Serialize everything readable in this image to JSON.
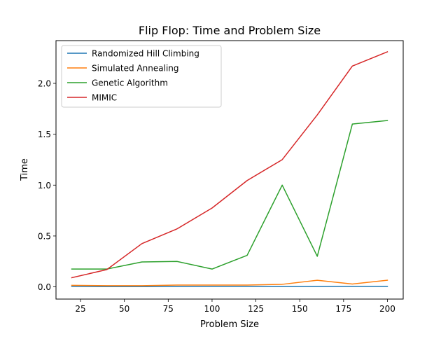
{
  "chart_data": {
    "type": "line",
    "title": "Flip Flop: Time and Problem Size",
    "xlabel": "Problem Size",
    "ylabel": "Time",
    "xlim": [
      11,
      209
    ],
    "ylim": [
      -0.12,
      2.42
    ],
    "xticks": [
      25,
      50,
      75,
      100,
      125,
      150,
      175,
      200
    ],
    "yticks": [
      0.0,
      0.5,
      1.0,
      1.5,
      2.0
    ],
    "xtick_labels": [
      "25",
      "50",
      "75",
      "100",
      "125",
      "150",
      "175",
      "200"
    ],
    "ytick_labels": [
      "0.0",
      "0.5",
      "1.0",
      "1.5",
      "2.0"
    ],
    "legend_position": "upper-left",
    "grid": false,
    "x": [
      20,
      40,
      60,
      80,
      100,
      120,
      140,
      160,
      180,
      200
    ],
    "series": [
      {
        "name": "Randomized Hill Climbing",
        "color": "#1f77b4",
        "values": [
          0.005,
          0.003,
          0.003,
          0.004,
          0.005,
          0.005,
          0.003,
          0.004,
          0.005,
          0.005
        ]
      },
      {
        "name": "Simulated Annealing",
        "color": "#ff7f0e",
        "values": [
          0.015,
          0.012,
          0.012,
          0.018,
          0.018,
          0.018,
          0.025,
          0.065,
          0.028,
          0.065
        ]
      },
      {
        "name": "Genetic Algorithm",
        "color": "#2ca02c",
        "values": [
          0.175,
          0.175,
          0.245,
          0.25,
          0.175,
          0.31,
          1.0,
          0.3,
          1.6,
          1.635
        ]
      },
      {
        "name": "MIMIC",
        "color": "#d62728",
        "values": [
          0.09,
          0.17,
          0.425,
          0.57,
          0.775,
          1.045,
          1.25,
          1.69,
          2.17,
          2.31
        ]
      }
    ]
  }
}
